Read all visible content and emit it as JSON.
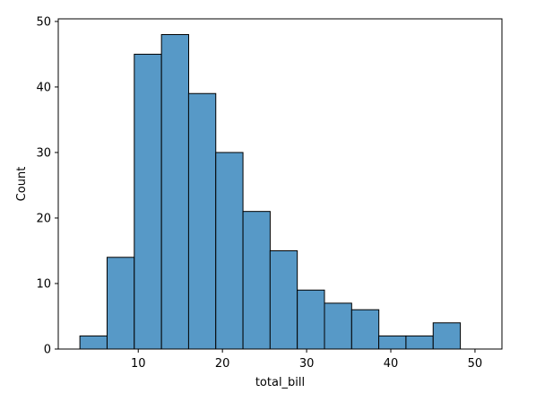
{
  "chart_data": {
    "type": "bar",
    "title": "",
    "xlabel": "total_bill",
    "ylabel": "Count",
    "bin_edges": [
      3.07,
      6.3,
      9.53,
      12.76,
      15.98,
      19.21,
      22.44,
      25.66,
      28.89,
      32.12,
      35.35,
      38.57,
      41.8,
      45.03,
      48.26
    ],
    "bin_width": 3.23,
    "values": [
      2,
      14,
      45,
      48,
      39,
      30,
      21,
      15,
      9,
      7,
      6,
      2,
      2,
      4
    ],
    "xlim": [
      0.5,
      53.2
    ],
    "ylim": [
      0,
      50.4
    ],
    "xticks": [
      10,
      20,
      30,
      40,
      50
    ],
    "yticks": [
      0,
      10,
      20,
      30,
      40,
      50
    ],
    "xtick_labels": [
      "10",
      "20",
      "30",
      "40",
      "50"
    ],
    "ytick_labels": [
      "0",
      "10",
      "20",
      "30",
      "40",
      "50"
    ],
    "bar_color": "#5799c7",
    "edge_color": "#000000",
    "grid": false,
    "legend": "none"
  }
}
